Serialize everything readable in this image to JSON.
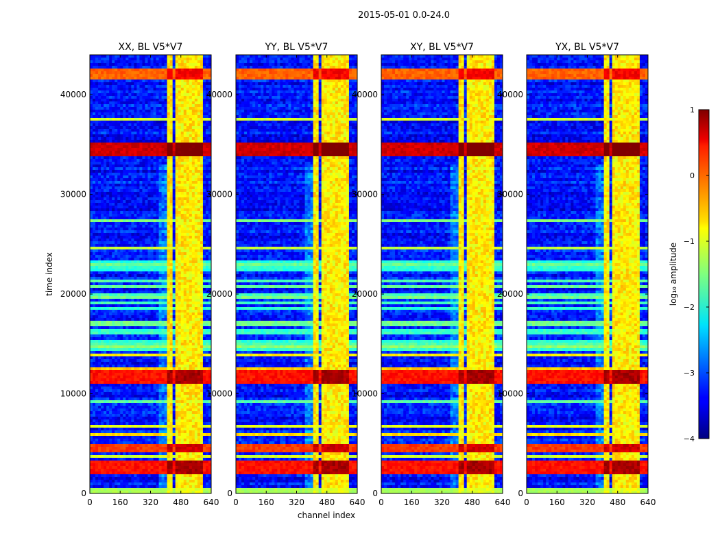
{
  "chart_data": {
    "type": "heatmap",
    "suptitle": "2015-05-01 0.0-24.0",
    "xlabel": "channel index",
    "ylabel": "time index",
    "xlim": [
      0,
      640
    ],
    "ylim": [
      0,
      44000
    ],
    "xticks": [
      0,
      160,
      320,
      480,
      640
    ],
    "yticks": [
      0,
      10000,
      20000,
      30000,
      40000
    ],
    "xtick_labels": [
      "0",
      "160",
      "320",
      "480",
      "640"
    ],
    "ytick_labels": [
      "0",
      "10000",
      "20000",
      "30000",
      "40000"
    ],
    "colorbar": {
      "label": "log₁₀ amplitude",
      "range": [
        -4,
        1
      ],
      "ticks": [
        1,
        0,
        -1,
        -2,
        -3,
        -4
      ],
      "tick_labels": [
        "1",
        "0",
        "−1",
        "−2",
        "−3",
        "−4"
      ]
    },
    "panels": [
      {
        "title": "XX, BL V5*V7",
        "pol": "XX"
      },
      {
        "title": "YY, BL V5*V7",
        "pol": "YY"
      },
      {
        "title": "XY, BL V5*V7",
        "pol": "XY"
      },
      {
        "title": "YX, BL V5*V7",
        "pol": "YX"
      }
    ],
    "features": {
      "rfi_channel_ranges": [
        [
          410,
          440
        ],
        [
          450,
          490
        ],
        [
          495,
          520
        ],
        [
          530,
          560
        ],
        [
          570,
          600
        ]
      ],
      "bright_time_bands": [
        {
          "t0": 41500,
          "t1": 42500,
          "level": 0.1
        },
        {
          "t0": 33800,
          "t1": 35300,
          "level": 0.8
        },
        {
          "t0": 11000,
          "t1": 12400,
          "level": 0.5
        },
        {
          "t0": 2000,
          "t1": 3200,
          "level": 0.5
        },
        {
          "t0": 4200,
          "t1": 5000,
          "level": 0.3
        }
      ],
      "bottom_band": {
        "t0": 0,
        "t1": 600,
        "level": -1.3
      },
      "background_level": -3.3
    }
  }
}
